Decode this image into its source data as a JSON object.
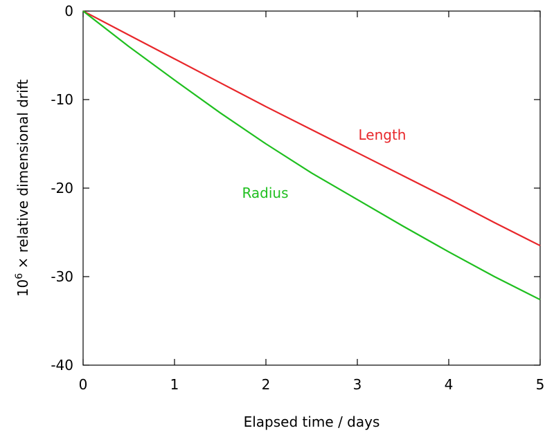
{
  "chart_data": {
    "type": "line",
    "title": "",
    "xlabel": "Elapsed time / days",
    "ylabel_base": "10",
    "ylabel_sup": "6",
    "ylabel_rest": " × relative dimensional drift",
    "xlim": [
      0,
      5
    ],
    "ylim": [
      -40,
      0
    ],
    "xticks": [
      0,
      1,
      2,
      3,
      4,
      5
    ],
    "yticks": [
      -40,
      -30,
      -20,
      -10,
      0
    ],
    "grid": false,
    "legend": "inline labels",
    "series": [
      {
        "name": "Length",
        "color": "#e8262a",
        "x": [
          0,
          0.5,
          1,
          1.5,
          2,
          2.5,
          3,
          3.5,
          4,
          4.5,
          5
        ],
        "values": [
          0,
          -2.7,
          -5.4,
          -8.1,
          -10.8,
          -13.4,
          -16.0,
          -18.6,
          -21.2,
          -23.9,
          -26.5
        ]
      },
      {
        "name": "Radius",
        "color": "#1fbf1f",
        "x": [
          0,
          0.5,
          1,
          1.5,
          2,
          2.5,
          3,
          3.5,
          4,
          4.5,
          5
        ],
        "values": [
          0,
          -4.0,
          -7.8,
          -11.5,
          -15.0,
          -18.3,
          -21.3,
          -24.3,
          -27.2,
          -30.0,
          -32.6
        ]
      }
    ]
  }
}
